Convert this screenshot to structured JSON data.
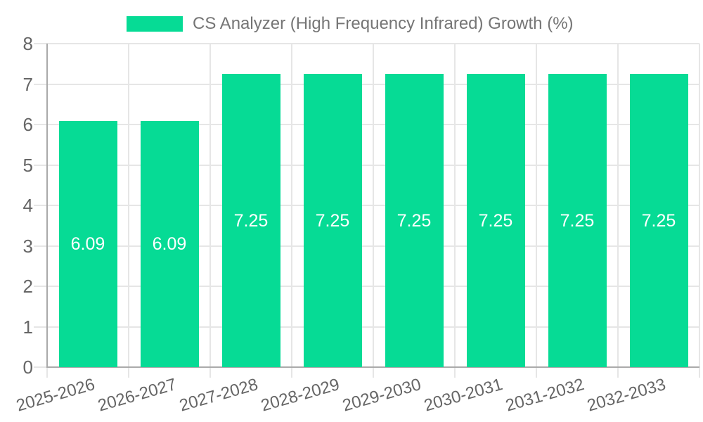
{
  "legend": {
    "label": "CS Analyzer (High Frequency Infrared) Growth (%)"
  },
  "chart_data": {
    "type": "bar",
    "title": "",
    "categories": [
      "2025-2026",
      "2026-2027",
      "2027-2028",
      "2028-2029",
      "2029-2030",
      "2030-2031",
      "2031-2032",
      "2032-2033"
    ],
    "series": [
      {
        "name": "CS Analyzer (High Frequency Infrared) Growth (%)",
        "values": [
          6.09,
          6.09,
          7.25,
          7.25,
          7.25,
          7.25,
          7.25,
          7.25
        ],
        "color": "#06DB95"
      }
    ],
    "value_labels": [
      "6.09",
      "6.09",
      "7.25",
      "7.25",
      "7.25",
      "7.25",
      "7.25",
      "7.25"
    ],
    "xlabel": "",
    "ylabel": "",
    "ylim": [
      0,
      8
    ],
    "yticks": [
      0,
      1,
      2,
      3,
      4,
      5,
      6,
      7,
      8
    ],
    "grid": true,
    "legend_position": "top-center",
    "x_tick_rotation_deg": -16
  },
  "colors": {
    "bar": "#06DB95",
    "grid": "#e6e6e6",
    "axis": "#aaaaaa",
    "tick_text": "#666666",
    "legend_text": "#757575",
    "value_label_text": "#ffffff",
    "background": "#ffffff"
  }
}
